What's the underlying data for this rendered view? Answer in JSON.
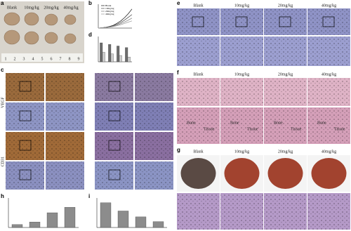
{
  "letters": [
    "a",
    "b",
    "c",
    "d",
    "e",
    "f",
    "g",
    "h",
    "i"
  ],
  "groups": [
    "Blank",
    "10mg/kg",
    "20mg/kg",
    "40mg/kg"
  ],
  "tissue": {
    "bone": "Bone",
    "tissue": "Tissue"
  },
  "stains": [
    "VEGF",
    "CD31"
  ],
  "ruler": [
    "1",
    "2",
    "3",
    "4",
    "5",
    "6",
    "7",
    "8",
    "9"
  ],
  "charts": {
    "b": {
      "type": "line",
      "x": [
        0,
        1,
        2,
        3,
        4,
        5,
        6,
        7,
        8,
        9
      ],
      "xlim": [
        0,
        9
      ],
      "ylim": [
        0,
        3000
      ],
      "series": [
        {
          "name": "Blank",
          "color": "#111111",
          "values": [
            0,
            50,
            100,
            200,
            350,
            600,
            900,
            1300,
            1800,
            2400
          ]
        },
        {
          "name": "10mg/kg",
          "color": "#444444",
          "values": [
            0,
            40,
            90,
            170,
            300,
            480,
            700,
            1000,
            1350,
            1700
          ]
        },
        {
          "name": "20mg/kg",
          "color": "#777777",
          "values": [
            0,
            30,
            80,
            140,
            240,
            380,
            560,
            760,
            1000,
            1250
          ]
        },
        {
          "name": "40mg/kg",
          "color": "#999999",
          "values": [
            0,
            30,
            70,
            120,
            190,
            300,
            430,
            580,
            750,
            900
          ]
        }
      ]
    },
    "d": {
      "type": "bar",
      "ylim": [
        0,
        8
      ],
      "series": [
        {
          "color": "#6d6d6d",
          "values": [
            6,
            5.5,
            5,
            4.5
          ]
        },
        {
          "color": "#cfcfcf",
          "values": [
            3,
            2.5,
            2,
            1.5
          ]
        }
      ]
    },
    "h": {
      "type": "bar",
      "ylim": [
        0,
        80
      ],
      "series": [
        {
          "color": "#8c8c8c",
          "values": [
            8,
            15,
            40,
            55
          ]
        }
      ]
    },
    "i": {
      "type": "bar",
      "ylim": [
        0,
        50
      ],
      "series": [
        {
          "color": "#8c8c8c",
          "values": [
            42,
            28,
            18,
            10
          ]
        }
      ]
    }
  }
}
